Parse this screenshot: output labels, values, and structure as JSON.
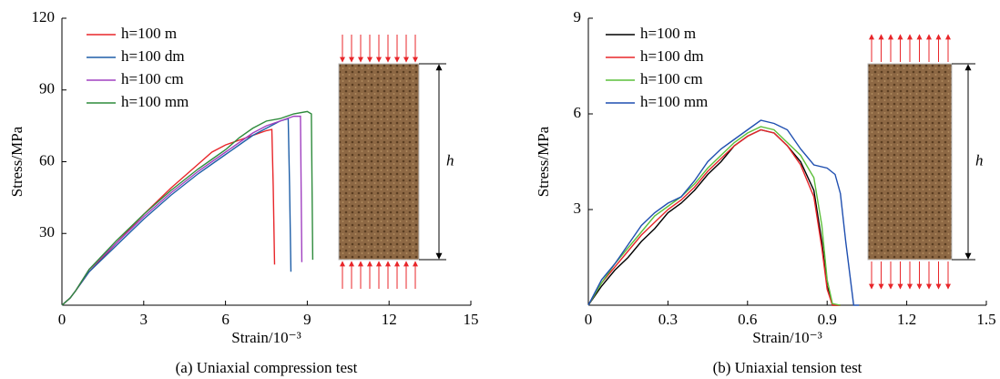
{
  "chart_data": [
    {
      "type": "line",
      "xlabel": "Strain/10⁻³",
      "ylabel": "Stress/MPa",
      "caption": "(a) Uniaxial compression test",
      "annotation": "h",
      "xlim": [
        0,
        15
      ],
      "xticks": [
        0,
        3,
        6,
        9,
        12,
        15
      ],
      "ylim": [
        0,
        120
      ],
      "yticks": [
        30,
        60,
        90,
        120
      ],
      "legend": "upper left",
      "series": [
        {
          "name": "h=100 m",
          "color": "#e8262a",
          "x": [
            0,
            0.3,
            0.5,
            1,
            2,
            3,
            4,
            5,
            5.5,
            6,
            6.5,
            7,
            7.5,
            7.7,
            7.75,
            7.8
          ],
          "values": [
            0,
            3,
            6,
            14,
            26,
            38,
            49,
            59,
            64,
            67,
            69,
            71,
            73,
            73.5,
            50,
            17
          ]
        },
        {
          "name": "h=100 dm",
          "color": "#1f5fa8",
          "x": [
            0,
            0.3,
            0.5,
            1,
            2,
            3,
            4,
            5,
            5.5,
            6,
            6.5,
            7,
            7.5,
            8,
            8.3,
            8.35,
            8.4
          ],
          "values": [
            0,
            3,
            6,
            14,
            25,
            36,
            46,
            55,
            59,
            63,
            67,
            71,
            74,
            77,
            78,
            50,
            14
          ]
        },
        {
          "name": "h=100 cm",
          "color": "#a040c0",
          "x": [
            0,
            0.3,
            0.5,
            1,
            2,
            3,
            4,
            5,
            5.5,
            6,
            6.5,
            7,
            7.5,
            8,
            8.5,
            8.75,
            8.8
          ],
          "values": [
            0,
            3,
            6,
            15,
            26,
            37,
            47,
            56,
            60,
            64,
            68,
            72,
            75,
            77,
            79,
            79,
            18
          ]
        },
        {
          "name": "h=100 mm",
          "color": "#2e8b3c",
          "x": [
            0,
            0.3,
            0.5,
            1,
            2,
            3,
            4,
            5,
            5.5,
            6,
            6.5,
            7,
            7.5,
            8,
            8.5,
            9,
            9.15,
            9.2
          ],
          "values": [
            0,
            3,
            6,
            15,
            27,
            38,
            48,
            57,
            61,
            65,
            70,
            74,
            77,
            78,
            80,
            81,
            80,
            19
          ]
        }
      ]
    },
    {
      "type": "line",
      "xlabel": "Strain/10⁻³",
      "ylabel": "Stress/MPa",
      "caption": "(b) Uniaxial tension test",
      "annotation": "h",
      "xlim": [
        0,
        1.5
      ],
      "xticks": [
        0,
        0.3,
        0.6,
        0.9,
        1.2,
        1.5
      ],
      "ylim": [
        0,
        9
      ],
      "yticks": [
        3,
        6,
        9
      ],
      "legend": "upper left",
      "series": [
        {
          "name": "h=100 m",
          "color": "#000000",
          "x": [
            0,
            0.05,
            0.1,
            0.15,
            0.2,
            0.25,
            0.3,
            0.35,
            0.4,
            0.45,
            0.5,
            0.55,
            0.6,
            0.65,
            0.7,
            0.75,
            0.8,
            0.85,
            0.88,
            0.9,
            0.92,
            0.95
          ],
          "values": [
            0,
            0.6,
            1.1,
            1.5,
            2.0,
            2.4,
            2.9,
            3.2,
            3.6,
            4.1,
            4.5,
            5.0,
            5.3,
            5.5,
            5.4,
            5.0,
            4.5,
            3.6,
            2.0,
            0.6,
            0,
            0
          ]
        },
        {
          "name": "h=100 dm",
          "color": "#e8262a",
          "x": [
            0,
            0.05,
            0.1,
            0.15,
            0.2,
            0.25,
            0.3,
            0.35,
            0.4,
            0.45,
            0.5,
            0.55,
            0.6,
            0.65,
            0.7,
            0.75,
            0.8,
            0.85,
            0.88,
            0.9,
            0.92,
            0.95
          ],
          "values": [
            0,
            0.7,
            1.2,
            1.7,
            2.2,
            2.6,
            3.0,
            3.3,
            3.7,
            4.2,
            4.6,
            5.0,
            5.3,
            5.5,
            5.4,
            5.0,
            4.4,
            3.4,
            1.8,
            0.5,
            0,
            0
          ]
        },
        {
          "name": "h=100 cm",
          "color": "#5cbf3a",
          "x": [
            0,
            0.05,
            0.1,
            0.15,
            0.2,
            0.25,
            0.3,
            0.35,
            0.4,
            0.45,
            0.5,
            0.55,
            0.6,
            0.65,
            0.7,
            0.75,
            0.8,
            0.85,
            0.88,
            0.9,
            0.92,
            0.95
          ],
          "values": [
            0,
            0.7,
            1.3,
            1.8,
            2.3,
            2.8,
            3.1,
            3.4,
            3.8,
            4.3,
            4.7,
            5.1,
            5.4,
            5.6,
            5.5,
            5.1,
            4.7,
            4.0,
            2.5,
            0.8,
            0.05,
            0
          ]
        },
        {
          "name": "h=100 mm",
          "color": "#1f4fb0",
          "x": [
            0,
            0.05,
            0.1,
            0.15,
            0.2,
            0.25,
            0.3,
            0.35,
            0.4,
            0.45,
            0.5,
            0.55,
            0.6,
            0.65,
            0.7,
            0.75,
            0.8,
            0.85,
            0.9,
            0.93,
            0.95,
            0.97,
            1.0,
            1.02
          ],
          "values": [
            0,
            0.8,
            1.3,
            1.9,
            2.5,
            2.9,
            3.2,
            3.4,
            3.9,
            4.5,
            4.9,
            5.2,
            5.5,
            5.8,
            5.7,
            5.5,
            4.9,
            4.4,
            4.3,
            4.1,
            3.5,
            2,
            0,
            0
          ]
        }
      ]
    }
  ]
}
